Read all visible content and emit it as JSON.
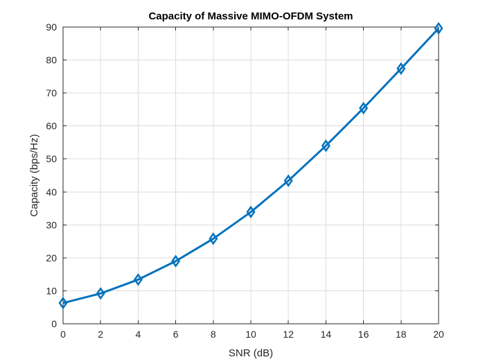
{
  "chart_data": {
    "type": "line",
    "title": "Capacity of Massive MIMO-OFDM System",
    "xlabel": "SNR (dB)",
    "ylabel": "Capacity (bps/Hz)",
    "xlim": [
      0,
      20
    ],
    "ylim": [
      0,
      90
    ],
    "xticks": [
      0,
      2,
      4,
      6,
      8,
      10,
      12,
      14,
      16,
      18,
      20
    ],
    "yticks": [
      0,
      10,
      20,
      30,
      40,
      50,
      60,
      70,
      80,
      90
    ],
    "grid": true,
    "series": [
      {
        "x": [
          0,
          2,
          4,
          6,
          8,
          10,
          12,
          14,
          16,
          18,
          20
        ],
        "y": [
          6.3,
          9.2,
          13.4,
          19.0,
          25.8,
          33.9,
          43.4,
          54.0,
          65.4,
          77.4,
          89.6
        ],
        "color": "#0072BD",
        "marker": "diamond"
      }
    ]
  }
}
